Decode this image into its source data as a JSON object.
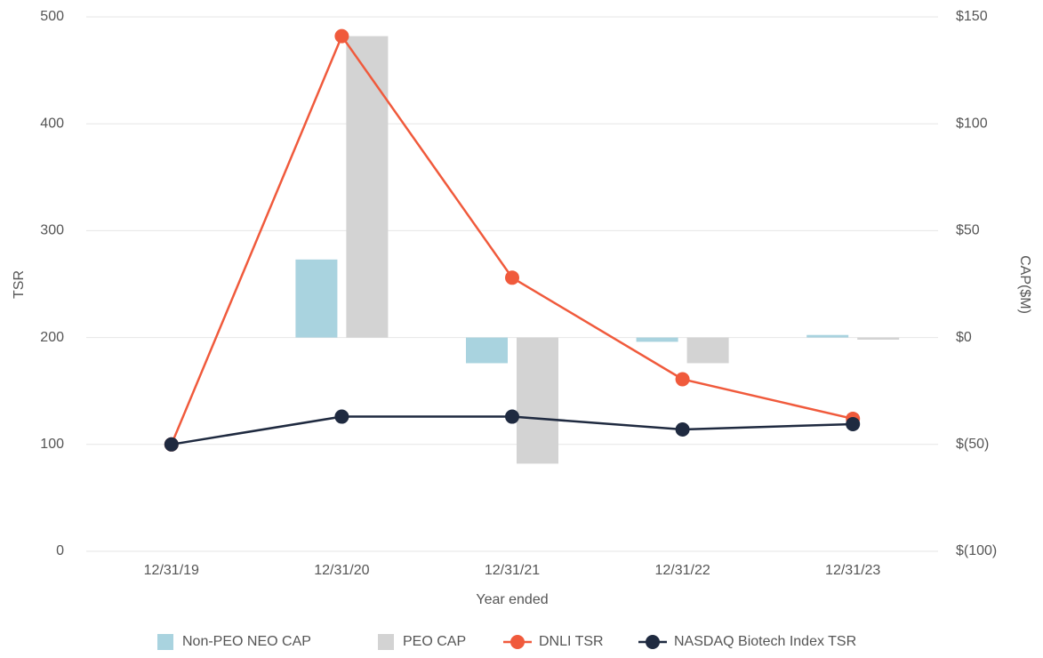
{
  "chart_data": {
    "type": "bar",
    "x_label": "Year ended",
    "y_label": "TSR",
    "y2_label": "CAP($M)",
    "categories": [
      "12/31/19",
      "12/31/20",
      "12/31/21",
      "12/31/22",
      "12/31/23"
    ],
    "ylim": [
      0,
      500
    ],
    "yticks": [
      0,
      100,
      200,
      300,
      400,
      500
    ],
    "y2lim": [
      -100,
      150
    ],
    "y2ticks": [
      {
        "value": -100,
        "label": "$(100)"
      },
      {
        "value": -50,
        "label": "$(50)"
      },
      {
        "value": 0,
        "label": "$0"
      },
      {
        "value": 50,
        "label": "$50"
      },
      {
        "value": 100,
        "label": "$100"
      },
      {
        "value": 150,
        "label": "$150"
      }
    ],
    "grid": true,
    "legend": "bottom",
    "series": [
      {
        "name": "Non-PEO NEO CAP",
        "type": "bar",
        "axis": "y2",
        "color": "#a9d3df",
        "values": [
          null,
          36.5,
          -12,
          -2,
          1.2
        ]
      },
      {
        "name": "PEO CAP",
        "type": "bar",
        "axis": "y2",
        "color": "#d3d3d3",
        "values": [
          null,
          141,
          -59,
          -12,
          -1
        ]
      },
      {
        "name": "DNLI TSR",
        "type": "line",
        "color": "#f05a3c",
        "values": [
          100,
          482,
          256,
          161,
          124
        ]
      },
      {
        "name": "NASDAQ Biotech Index TSR",
        "type": "line",
        "color": "#1f2a40",
        "values": [
          100,
          126,
          126,
          114,
          119
        ]
      }
    ]
  }
}
